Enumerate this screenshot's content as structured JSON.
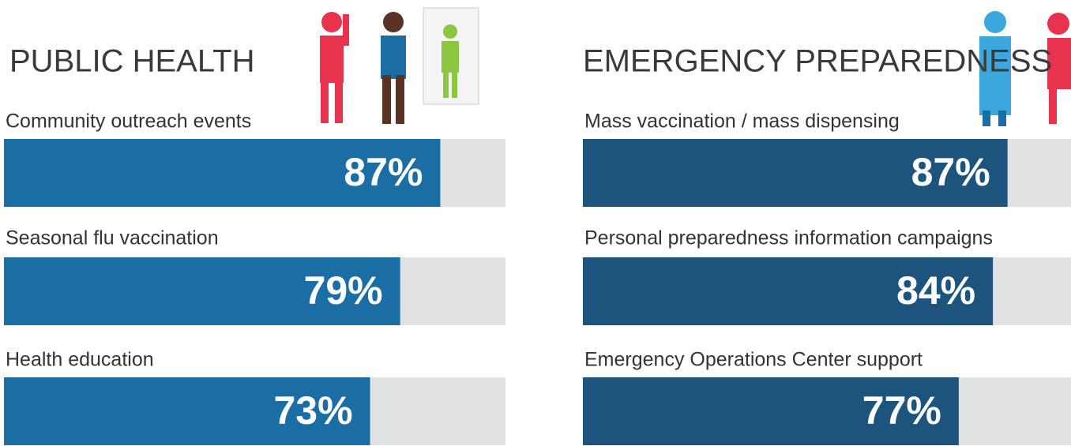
{
  "chart_data": [
    {
      "type": "hbar",
      "title": "PUBLIC HEALTH",
      "categories": [
        "Community outreach events",
        "Seasonal flu vaccination",
        "Health education"
      ],
      "values": [
        87,
        79,
        73
      ],
      "value_labels": [
        "87%",
        "79%",
        "73%"
      ],
      "color": "#1b6ea4",
      "xlim": [
        0,
        100
      ]
    },
    {
      "type": "hbar",
      "title": "EMERGENCY PREPAREDNESS",
      "categories": [
        "Mass vaccination / mass dispensing",
        "Personal preparedness information campaigns",
        "Emergency Operations Center support"
      ],
      "values": [
        87,
        84,
        77
      ],
      "value_labels": [
        "87%",
        "84%",
        "77%"
      ],
      "color": "#1c547e",
      "xlim": [
        0,
        100
      ]
    }
  ]
}
